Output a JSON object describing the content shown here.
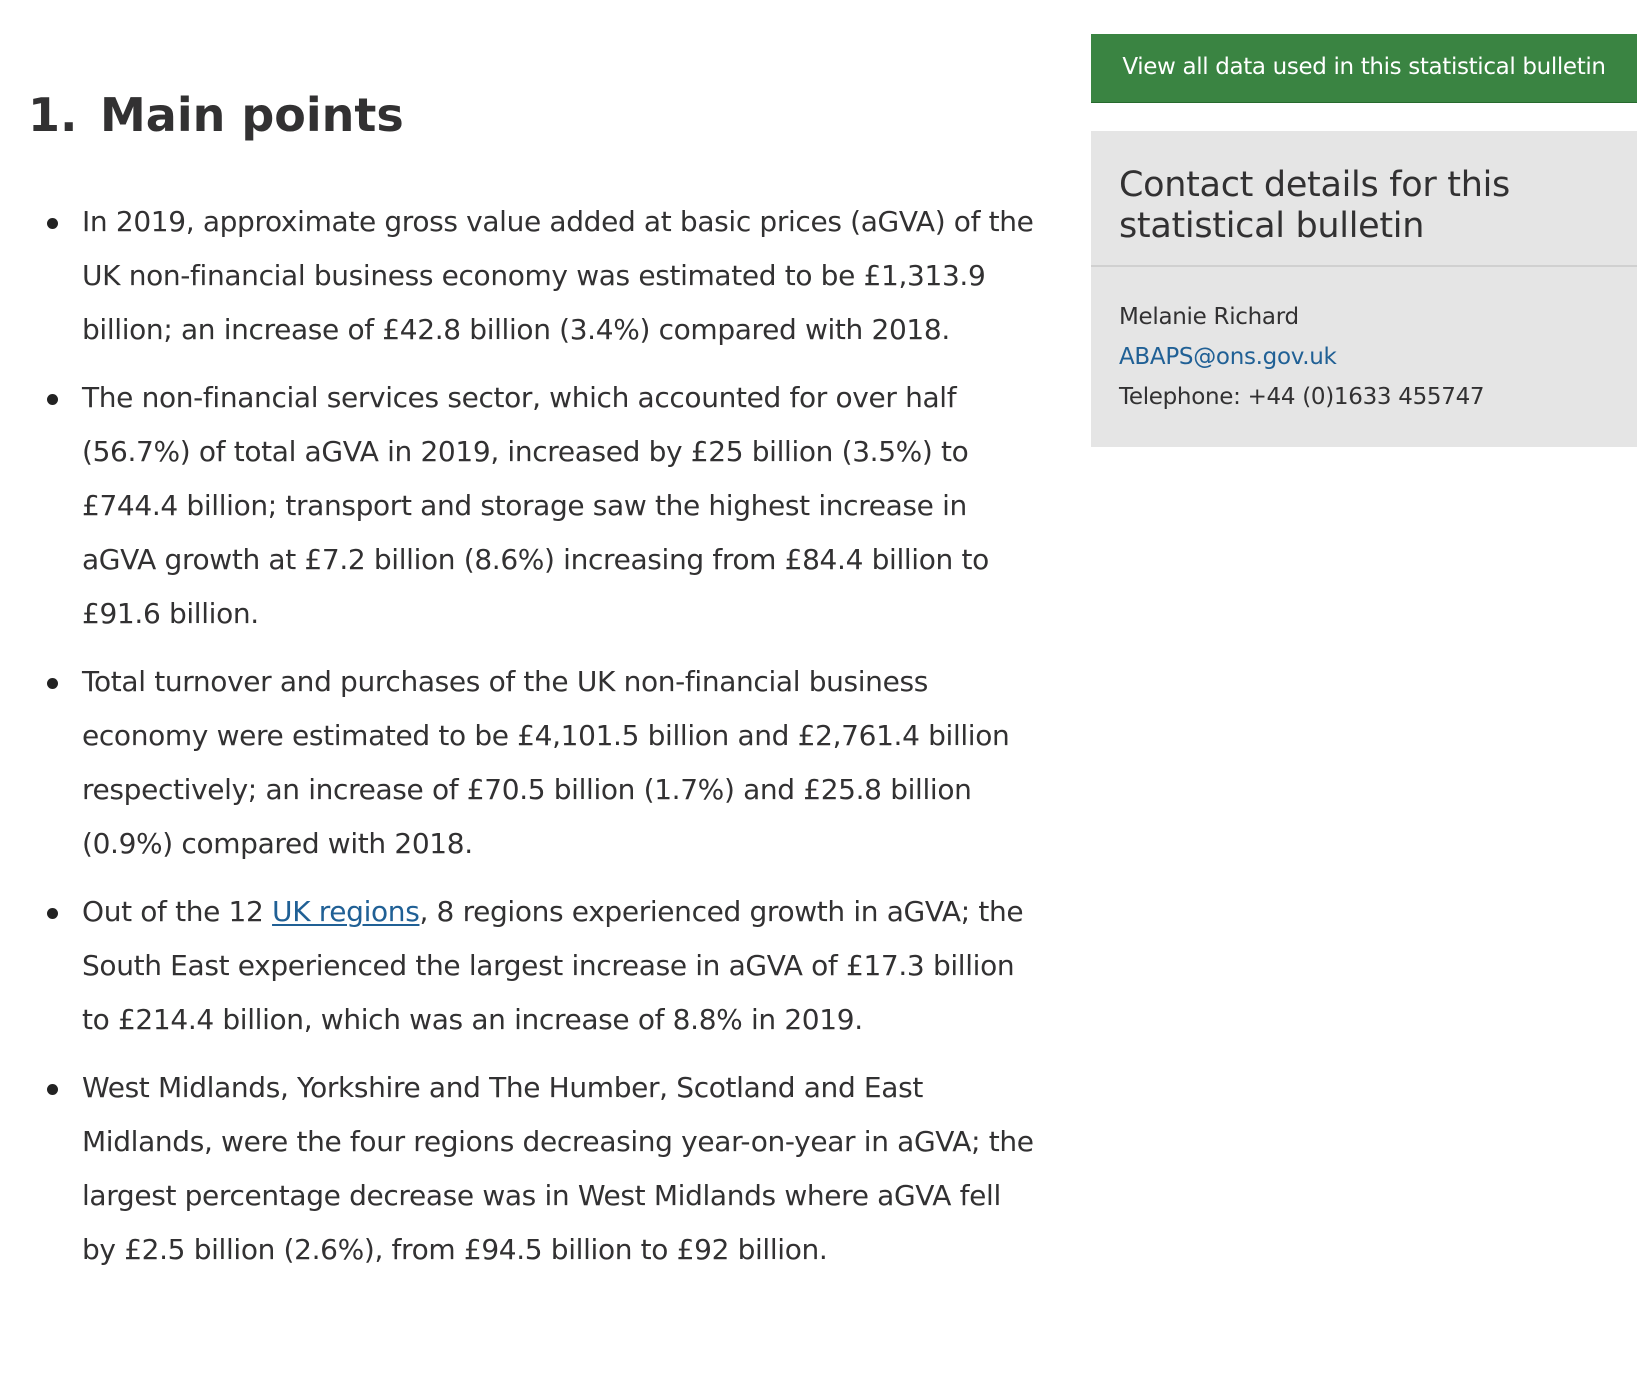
{
  "section": {
    "number": "1.",
    "title": "Main points"
  },
  "points": [
    {
      "text": "In 2019, approximate gross value added at basic prices (aGVA) of the UK non-financial business economy was estimated to be £1,313.9 billion; an increase of £42.8 billion (3.4%) compared with 2018."
    },
    {
      "text": "The non-financial services sector, which accounted for over half (56.7%) of total aGVA in 2019, increased by £25 billion (3.5%) to £744.4 billion; transport and storage saw the highest increase in aGVA growth at £7.2 billion (8.6%) increasing from £84.4 billion to £91.6 billion."
    },
    {
      "text": "Total turnover and purchases of the UK non-financial business economy were estimated to be £4,101.5 billion and £2,761.4 billion respectively; an increase of £70.5 billion (1.7%) and £25.8 billion (0.9%) compared with 2018."
    },
    {
      "text_before": "Out of the 12 ",
      "link_text": "UK regions",
      "text_after": ", 8 regions experienced growth in aGVA; the South East experienced the largest increase in aGVA of £17.3 billion to £214.4 billion, which was an increase of 8.8% in 2019."
    },
    {
      "text": "West Midlands, Yorkshire and The Humber, Scotland and East Midlands, were the four regions decreasing year-on-year in aGVA; the largest percentage decrease was in West Midlands where aGVA fell by £2.5 billion (2.6%), from £94.5 billion to £92 billion."
    }
  ],
  "sidebar": {
    "data_button_label": "View all data used in this statistical bulletin",
    "contact": {
      "title": "Contact details for this statistical bulletin",
      "name": "Melanie Richard",
      "email": "ABAPS@ons.gov.uk",
      "telephone": "Telephone: +44 (0)1633 455747"
    }
  },
  "colors": {
    "button_green": "#3a8442",
    "link_blue": "#206095",
    "panel_grey": "#e5e5e5",
    "text": "#323132"
  }
}
